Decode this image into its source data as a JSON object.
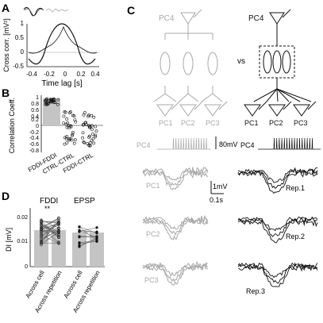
{
  "panels": {
    "A": {
      "letter": "A",
      "ylabel": "Cross corr. [mV²]",
      "xlabel": "Time lag [s]",
      "yticks": [
        "1",
        "0.5",
        "0",
        "-0.5"
      ],
      "xticks": [
        "-0.4",
        "-0.2",
        "0",
        "0.2",
        "0.4"
      ]
    },
    "B": {
      "letter": "B",
      "ylabel": "Correlation Coeff.",
      "yticks": [
        "1",
        "0.8",
        "0.6",
        "0.4",
        "0.2",
        "0",
        "-0.2",
        "-0.4",
        "-0.6",
        "-0.8"
      ],
      "categories": [
        "FDDI-FDDI",
        "CTRL-CTRL",
        "FDDI-CTRL"
      ]
    },
    "C": {
      "letter": "C",
      "vs": "vs",
      "left_top": "PC4",
      "left_bottom": [
        "PC1",
        "PC2",
        "PC3"
      ],
      "right_top": "PC4",
      "right_bottom": [
        "PC1",
        "PC2",
        "PC3"
      ],
      "spike_label_left": "PC4",
      "spike_label_right": "PC4",
      "scale_80": "80mV",
      "scale_1mv": "1mV",
      "scale_01s": "0.1s",
      "left_traces": [
        "PC1",
        "PC2",
        "PC3"
      ],
      "right_traces": [
        "Rep.1",
        "Rep.2",
        "Rep.3"
      ]
    },
    "D": {
      "letter": "D",
      "ylabel": "DI [mV]",
      "yticks": [
        "0.02",
        "0.01",
        "0"
      ],
      "group1": "FDDI",
      "group2": "EPSP",
      "sig": "**",
      "xcats": [
        "Across cell",
        "Across repetition",
        "Across cell",
        "Across repetition"
      ]
    }
  },
  "colors": {
    "dark": "#111111",
    "gray": "#a8a8a8",
    "bar": "#c4c4c4"
  }
}
